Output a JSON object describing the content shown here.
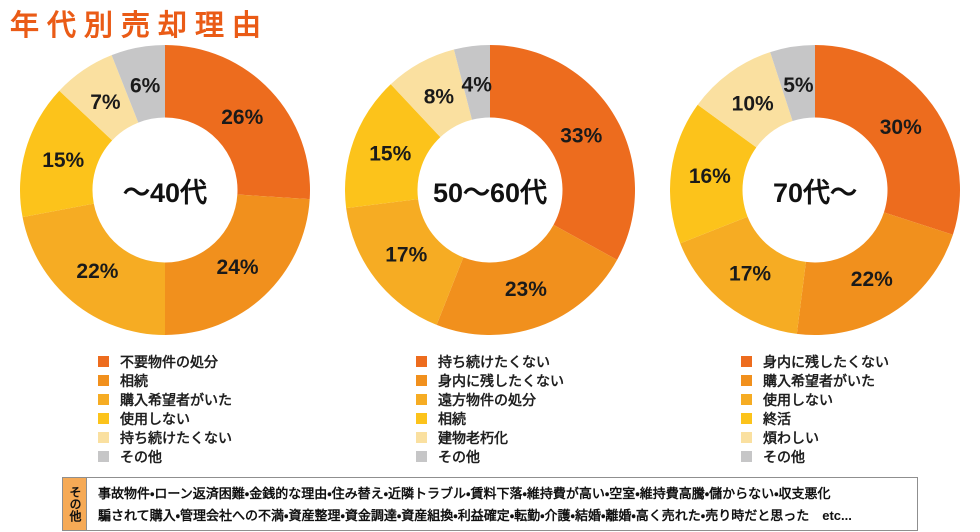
{
  "title": "年代別売却理由",
  "colors": {
    "title": "#EA5B16",
    "slices": [
      "#ED6C1E",
      "#F1901D",
      "#F6AC23",
      "#FCC31B",
      "#FAE0A0",
      "#C6C6C7"
    ],
    "percent_label_text": "#1A1A1A",
    "note_label_bg": "#F6AA56"
  },
  "chart_data": [
    {
      "type": "pie",
      "style": "donut",
      "center_label": "～40代",
      "unit": "%",
      "start": "top",
      "direction": "clockwise",
      "categories": [
        "不要物件の処分",
        "相続",
        "購入希望者がいた",
        "使用しない",
        "持ち続けたくない",
        "その他"
      ],
      "values": [
        26,
        24,
        22,
        15,
        7,
        6
      ],
      "legend_position": "bottom"
    },
    {
      "type": "pie",
      "style": "donut",
      "center_label": "50～60代",
      "unit": "%",
      "start": "top",
      "direction": "clockwise",
      "categories": [
        "持ち続けたくない",
        "身内に残したくない",
        "遠方物件の処分",
        "相続",
        "建物老朽化",
        "その他"
      ],
      "values": [
        33,
        23,
        17,
        15,
        8,
        4
      ],
      "legend_position": "bottom"
    },
    {
      "type": "pie",
      "style": "donut",
      "center_label": "70代～",
      "unit": "%",
      "start": "top",
      "direction": "clockwise",
      "categories": [
        "身内に残したくない",
        "購入希望者がいた",
        "使用しない",
        "終活",
        "煩わしい",
        "その他"
      ],
      "values": [
        30,
        22,
        17,
        16,
        10,
        5
      ],
      "legend_position": "bottom"
    }
  ],
  "note": {
    "label": "その他",
    "line1": "事故物件・ローン返済困難・金銭的な理由・住み替え・近隣トラブル・賃料下落・維持費が高い・空室・維持費高騰・儲からない・収支悪化",
    "line2": "騙されて購入・管理会社への不満・資産整理・資金調達・資産組換・利益確定・転勤・介護・結婚・離婚・高く売れた・売り時だと思った　etc..."
  }
}
